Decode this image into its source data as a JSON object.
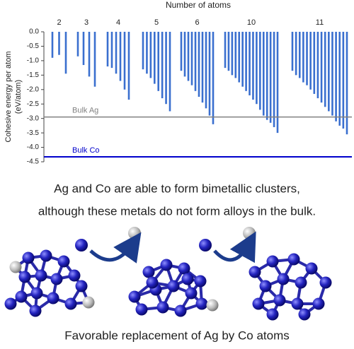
{
  "chart_data": {
    "type": "bar",
    "x_label": "Number of atoms",
    "y_label": [
      "Cohesive energy per atom",
      "(eV/atom)"
    ],
    "color": "#3a6fcf",
    "groups": [
      {
        "name": "2",
        "values": [
          -0.9,
          -0.8,
          -1.45
        ]
      },
      {
        "name": "3",
        "values": [
          -0.85,
          -1.15,
          -1.55,
          -1.9
        ]
      },
      {
        "name": "4",
        "values": [
          -1.2,
          -1.25,
          -1.45,
          -1.7,
          -2.0,
          -2.35
        ]
      },
      {
        "name": "5",
        "values": [
          -1.3,
          -1.45,
          -1.6,
          -1.8,
          -2.05,
          -2.3,
          -2.5,
          -2.75
        ]
      },
      {
        "name": "6",
        "values": [
          -1.35,
          -1.55,
          -1.7,
          -1.85,
          -2.05,
          -2.25,
          -2.45,
          -2.65,
          -2.9,
          -3.2
        ]
      },
      {
        "name": "10",
        "values": [
          -1.25,
          -1.35,
          -1.5,
          -1.6,
          -1.75,
          -1.9,
          -2.05,
          -2.2,
          -2.35,
          -2.5,
          -2.7,
          -2.9,
          -3.05,
          -3.15,
          -3.3,
          -3.5
        ]
      },
      {
        "name": "11",
        "values": [
          -1.35,
          -1.5,
          -1.6,
          -1.75,
          -1.85,
          -2.0,
          -2.15,
          -2.3,
          -2.45,
          -2.6,
          -2.75,
          -2.9,
          -3.1,
          -3.25,
          -3.35,
          -3.55
        ]
      }
    ],
    "reference_lines": [
      {
        "name": "Bulk Ag",
        "value": -2.95,
        "color": "#808080"
      },
      {
        "name": "Bulk Co",
        "value": -4.33,
        "color": "#0000cc"
      }
    ],
    "ylim": [
      -4.5,
      0
    ],
    "yticks": [
      {
        "value": 0,
        "label": "0.0"
      },
      -0.5,
      {
        "value": -1,
        "label": "-1.0"
      },
      -1.5,
      {
        "value": -2,
        "label": "-2.0"
      },
      -2.5,
      {
        "value": -3,
        "label": "-3.0"
      },
      -3.5,
      {
        "value": -4,
        "label": "-4.0"
      },
      -4.5
    ]
  },
  "captions": [
    "Ag and Co are able to form bimetallic clusters,",
    "although these metals do not form alloys in the bulk.",
    "Favorable replacement of Ag by Co atoms"
  ]
}
